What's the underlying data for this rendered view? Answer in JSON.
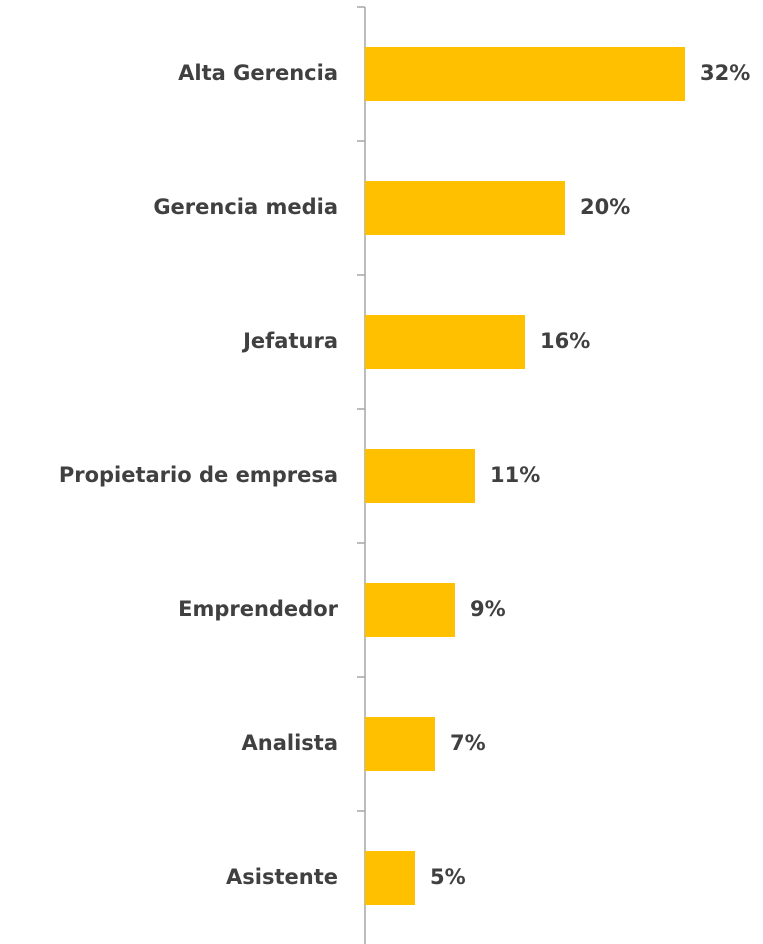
{
  "chart_data": {
    "type": "bar",
    "orientation": "horizontal",
    "categories": [
      "Alta Gerencia",
      "Gerencia media",
      "Jefatura",
      "Propietario de empresa",
      "Emprendedor",
      "Analista",
      "Asistente"
    ],
    "values": [
      32,
      20,
      16,
      11,
      9,
      7,
      5
    ],
    "value_labels": [
      "32%",
      "20%",
      "16%",
      "11%",
      "9%",
      "7%",
      "5%"
    ],
    "color": "#ffc000"
  }
}
